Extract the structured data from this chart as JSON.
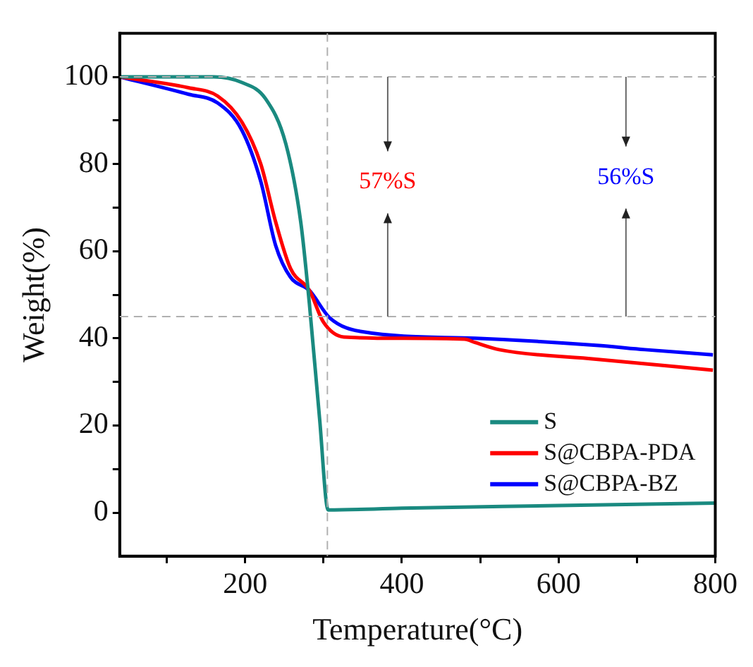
{
  "chart_data": {
    "type": "line",
    "xlabel": "Temperature(°C)",
    "ylabel": "Weight(%)",
    "xlim": [
      40,
      800
    ],
    "xticks": [
      {
        "value": 100,
        "label": null
      },
      200,
      {
        "value": 300,
        "label": null
      },
      400,
      {
        "value": 500,
        "label": null
      },
      600,
      {
        "value": 700,
        "label": null
      },
      800
    ],
    "ylim": [
      -10,
      110
    ],
    "yticks": [
      0,
      {
        "value": 10,
        "label": null
      },
      20,
      {
        "value": 30,
        "label": null
      },
      40,
      {
        "value": 50,
        "label": null
      },
      60,
      {
        "value": 70,
        "label": null
      },
      80,
      {
        "value": 90,
        "label": null
      },
      100
    ],
    "grid": false,
    "legend": "bottom right",
    "marker": "none",
    "line_style": "solid",
    "series": [
      {
        "name": "S",
        "color": "#1a8a80",
        "x": [
          40,
          100,
          160,
          196,
          226,
          252,
          271,
          282,
          295,
          306,
          400,
          600,
          800
        ],
        "values": [
          100,
          100,
          100,
          98.7,
          95,
          84.6,
          66.7,
          48,
          21.7,
          0.6,
          1,
          1.6,
          2.2
        ]
      },
      {
        "name": "S@CBPA-PDA",
        "color": "#ff0000",
        "x": [
          40,
          128,
          165,
          196,
          220,
          239,
          258,
          282,
          300,
          326,
          400,
          480,
          494,
          524,
          648,
          797
        ],
        "values": [
          100,
          97.5,
          95.6,
          89.6,
          80,
          66.7,
          56,
          51,
          43.7,
          40.3,
          40,
          39.8,
          39,
          37.4,
          35.2,
          32.7
        ]
      },
      {
        "name": "S@CBPA-BZ",
        "color": "#0000ff",
        "x": [
          40,
          128,
          165,
          196,
          220,
          239,
          258,
          282,
          308,
          350,
          494,
          648,
          710,
          797
        ],
        "values": [
          100,
          96,
          94,
          87.7,
          76,
          61.3,
          54,
          51,
          44.7,
          41.5,
          40,
          38.4,
          37.4,
          36.2
        ]
      }
    ],
    "ref_lines": [
      {
        "axis": "y",
        "value": 100,
        "color": "#b0b0b0",
        "line_style": "dashed"
      },
      {
        "axis": "y",
        "value": 45,
        "color": "#b0b0b0",
        "line_style": "dashed"
      },
      {
        "axis": "x",
        "value": 305,
        "color": "#b0b0b0",
        "line_style": "dashed"
      }
    ],
    "annotations": [
      "57%S",
      "56%S"
    ]
  }
}
